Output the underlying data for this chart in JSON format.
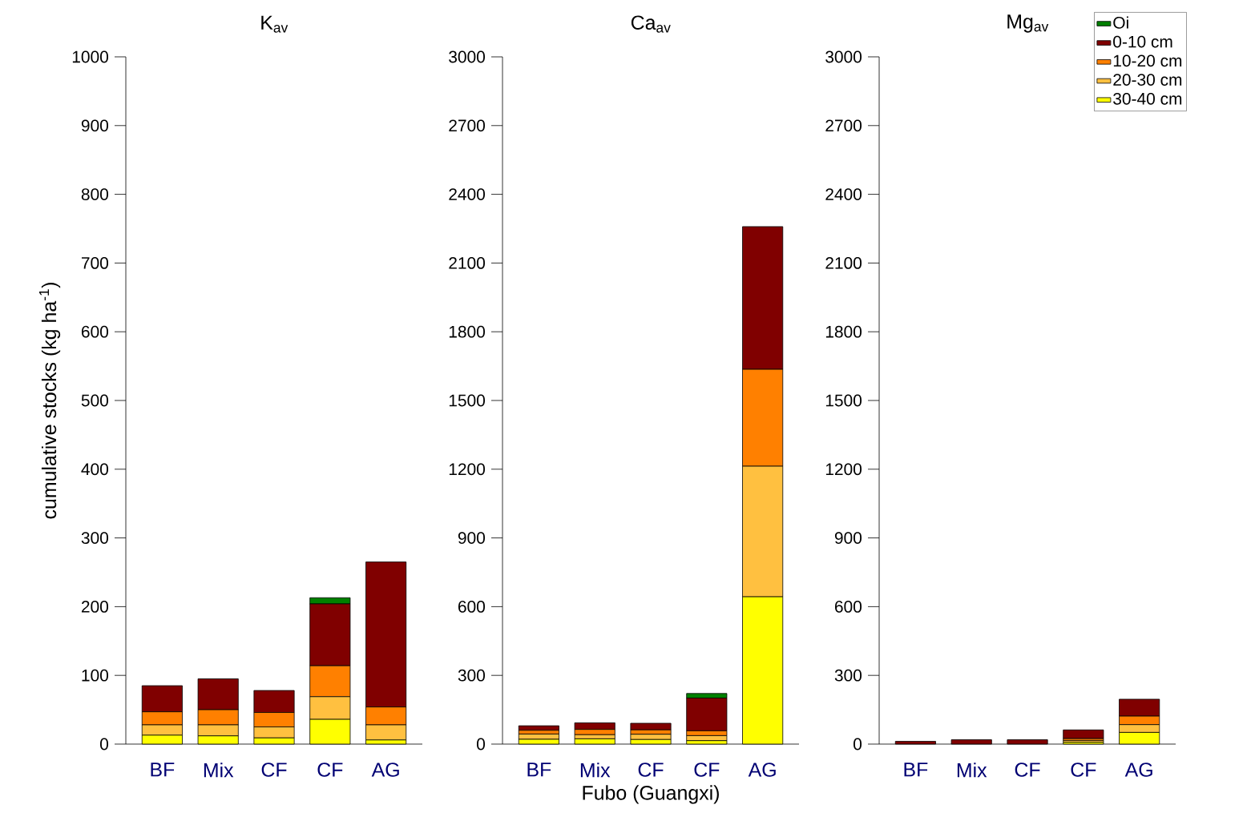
{
  "chart_data": [
    {
      "type": "bar",
      "title": "K$_{av}$",
      "ylabel": "cumulative stocks (kg ha$^{-1}$)",
      "categories": [
        "BF",
        "Mix",
        "CF",
        "CF",
        "AG"
      ],
      "stacked": true,
      "ylim": [
        0,
        1000
      ],
      "yticks": [
        0,
        100,
        200,
        300,
        400,
        500,
        600,
        700,
        800,
        900,
        1000
      ],
      "series": [
        {
          "color": "#ffff00",
          "values": [
            13,
            12,
            9,
            36,
            6
          ]
        },
        {
          "color": "#ffc040",
          "values": [
            15,
            16,
            16,
            33,
            22
          ]
        },
        {
          "color": "#ff8000",
          "values": [
            19,
            22,
            21,
            45,
            26
          ]
        },
        {
          "color": "#800000",
          "values": [
            38,
            45,
            32,
            90,
            211
          ]
        },
        {
          "color": "#008000",
          "values": [
            null,
            null,
            null,
            9,
            null
          ]
        }
      ]
    },
    {
      "type": "bar",
      "title": "Ca$_{av}$",
      "xlabel": "Fubo (Guangxi)",
      "categories": [
        "BF",
        "Mix",
        "CF",
        "CF",
        "AG"
      ],
      "stacked": true,
      "ylim": [
        0,
        3000
      ],
      "yticks": [
        0,
        300,
        600,
        900,
        1200,
        1500,
        1800,
        2100,
        2400,
        2700,
        3000
      ],
      "series": [
        {
          "color": "#ffff00",
          "values": [
            21,
            23,
            20,
            15,
            643
          ]
        },
        {
          "color": "#ffc040",
          "values": [
            23,
            18,
            23,
            22,
            570
          ]
        },
        {
          "color": "#ff8000",
          "values": [
            16,
            23,
            19,
            21,
            423
          ]
        },
        {
          "color": "#800000",
          "values": [
            20,
            29,
            29,
            143,
            623
          ]
        },
        {
          "color": "#008000",
          "values": [
            null,
            null,
            null,
            20,
            null
          ]
        }
      ]
    },
    {
      "type": "bar",
      "title": "Mg$_{av}$",
      "categories": [
        "BF",
        "Mix",
        "CF",
        "CF",
        "AG"
      ],
      "stacked": true,
      "ylim": [
        0,
        3000
      ],
      "yticks": [
        0,
        300,
        600,
        900,
        1200,
        1500,
        1800,
        2100,
        2400,
        2700,
        3000
      ],
      "legend": "top right",
      "series": [
        {
          "name": "30-40 cm",
          "color": "#ffff00",
          "values": [
            null,
            null,
            null,
            8,
            51
          ]
        },
        {
          "name": "20-30 cm",
          "color": "#ffc040",
          "values": [
            null,
            null,
            null,
            8,
            34
          ]
        },
        {
          "name": "10-20 cm",
          "color": "#ff8000",
          "values": [
            null,
            null,
            null,
            8,
            37
          ]
        },
        {
          "name": "0-10 cm",
          "color": "#800000",
          "values": [
            12,
            19,
            19,
            38,
            74
          ]
        },
        {
          "name": "Oi",
          "color": "#008000",
          "values": [
            null,
            null,
            null,
            null,
            null
          ]
        }
      ]
    }
  ]
}
